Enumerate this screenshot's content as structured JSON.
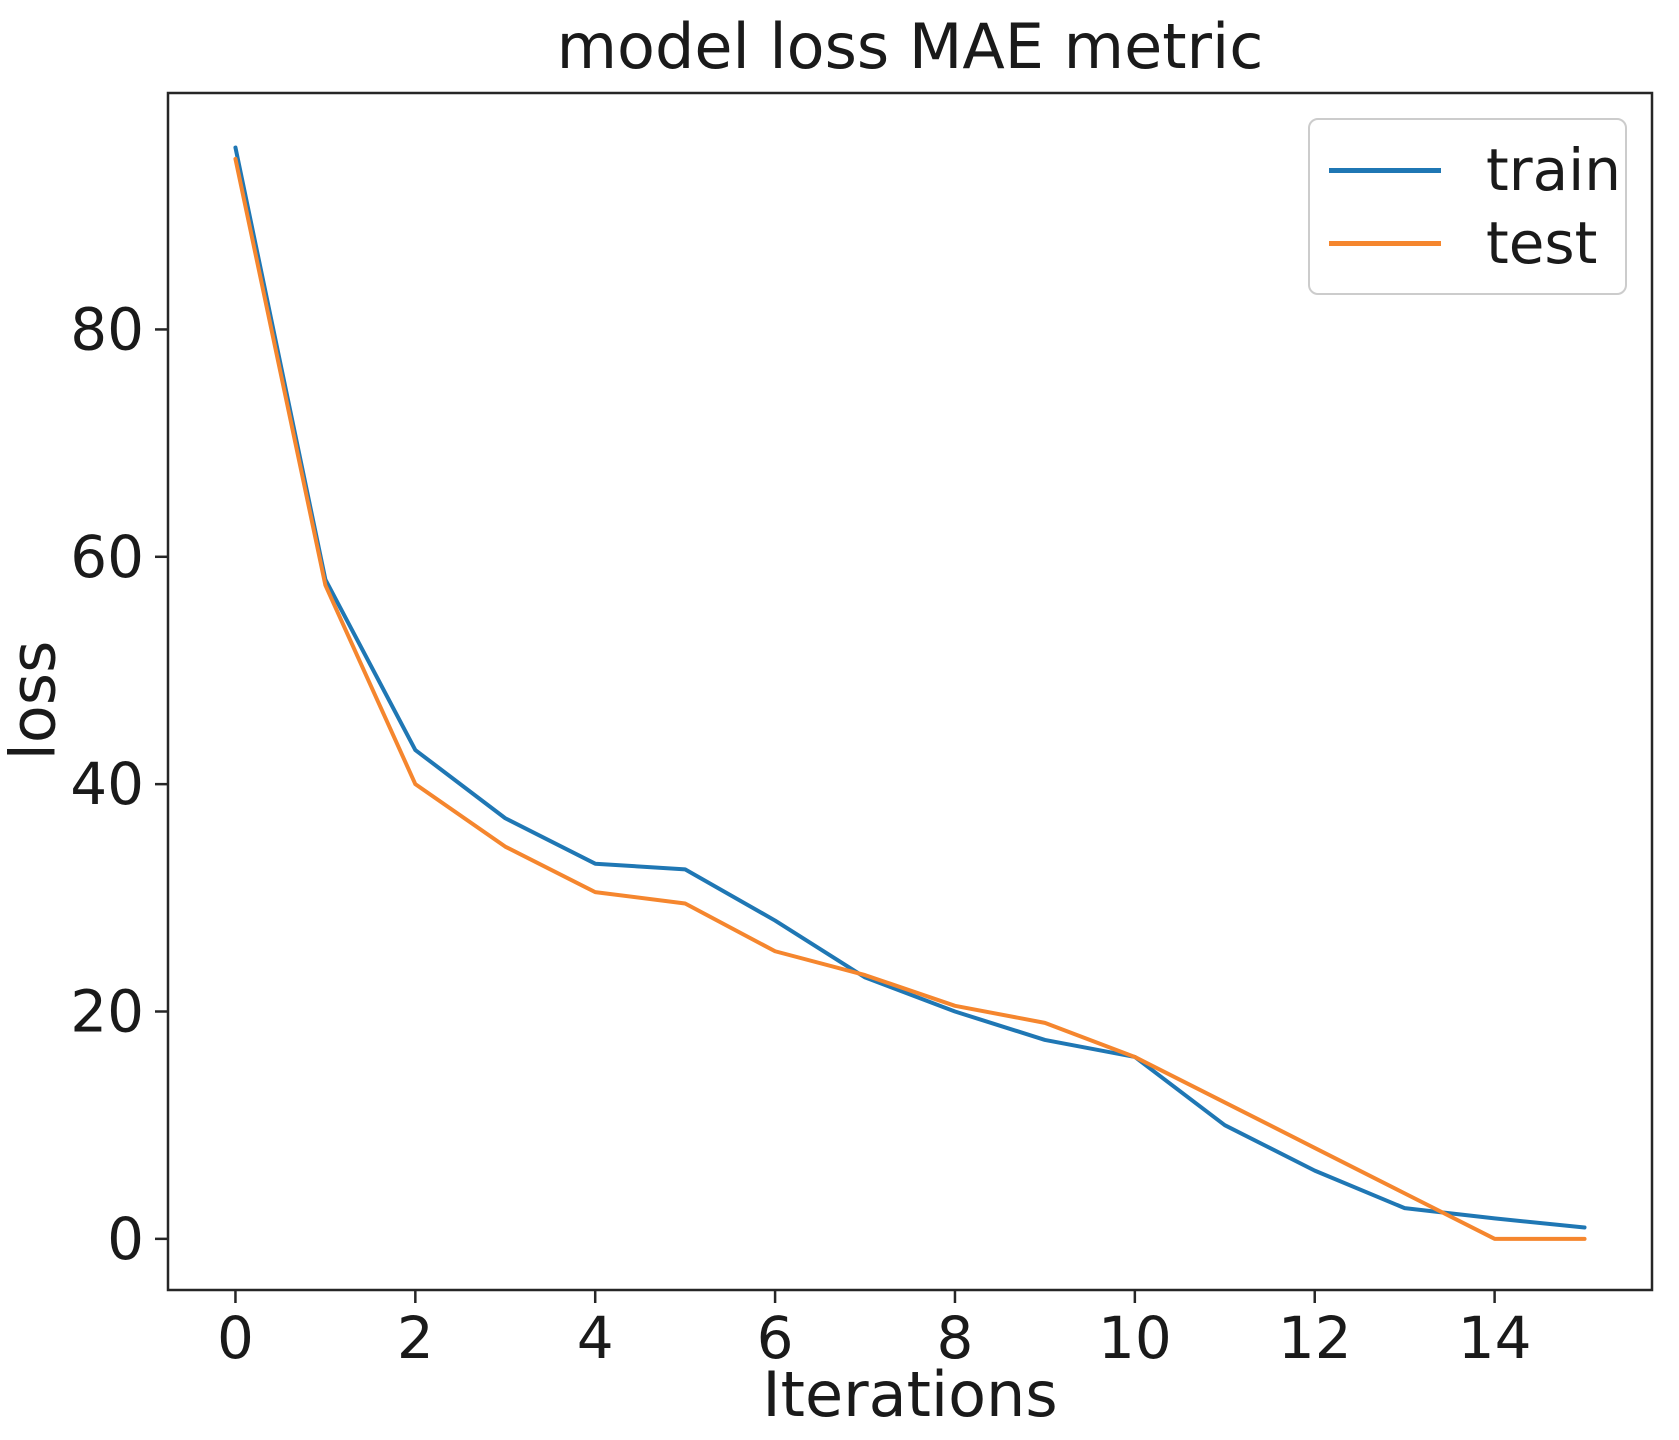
{
  "chart_data": {
    "type": "line",
    "title": "model loss MAE metric",
    "xlabel": "Iterations",
    "ylabel": "loss",
    "x": [
      0,
      1,
      2,
      3,
      4,
      5,
      6,
      7,
      8,
      9,
      10,
      11,
      12,
      13,
      14,
      15
    ],
    "series": [
      {
        "name": "train",
        "color": "#1f77b4",
        "values": [
          96,
          58,
          43,
          37,
          33,
          32.5,
          28,
          23,
          20,
          17.5,
          16,
          10,
          6,
          2.7,
          1.8,
          1
        ]
      },
      {
        "name": "test",
        "color": "#f5862e",
        "values": [
          95,
          57.5,
          40,
          34.5,
          30.5,
          29.5,
          25.3,
          23.2,
          20.5,
          19,
          16,
          12,
          8,
          4,
          0,
          0
        ]
      }
    ],
    "xlim": [
      -0.75,
      15.75
    ],
    "ylim": [
      -4.5,
      100.8
    ],
    "xticks": [
      0,
      2,
      4,
      6,
      8,
      10,
      12,
      14
    ],
    "yticks": [
      0,
      20,
      40,
      60,
      80
    ],
    "grid": false,
    "legend_position": "upper right",
    "axis_color": "#262626",
    "tick_label_color": "#1a1a1a",
    "tick_font_size": 58,
    "line_width": 4
  }
}
